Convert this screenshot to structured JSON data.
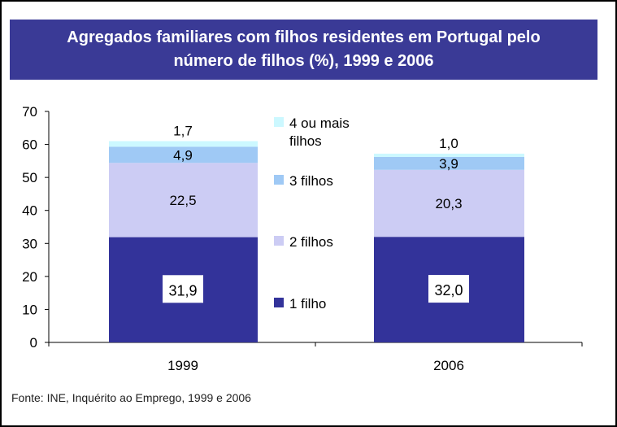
{
  "title": {
    "line1": "Agregados familiares com filhos residentes em Portugal pelo",
    "line2": "número de filhos (%), 1999 e 2006"
  },
  "source": "Fonte: INE, Inquérito ao Emprego, 1999 e 2006",
  "colors": {
    "title_bg": "#3a3a96",
    "series": [
      "#33339a",
      "#ccccf4",
      "#9fc9f5",
      "#ccf8ff"
    ]
  },
  "chart_data": {
    "type": "bar",
    "stacked": true,
    "categories": [
      "1999",
      "2006"
    ],
    "series": [
      {
        "name": "1 filho",
        "values": [
          31.9,
          32.0
        ],
        "labels": [
          "31,9",
          "32,0"
        ]
      },
      {
        "name": "2 filhos",
        "values": [
          22.5,
          20.3
        ],
        "labels": [
          "22,5",
          "20,3"
        ]
      },
      {
        "name": "3 filhos",
        "values": [
          4.9,
          3.9
        ],
        "labels": [
          "4,9",
          "3,9"
        ]
      },
      {
        "name": "4 ou mais filhos",
        "values": [
          1.7,
          1.0
        ],
        "labels": [
          "1,7",
          "1,0"
        ]
      }
    ],
    "legend_lines": [
      [
        "4 ou mais",
        "filhos"
      ],
      [
        "3 filhos"
      ],
      [
        "2 filhos"
      ],
      [
        "1 filho"
      ]
    ],
    "ylim": [
      0,
      70
    ],
    "yticks": [
      0,
      10,
      20,
      30,
      40,
      50,
      60,
      70
    ],
    "legend_position": "right, between bars",
    "grid": false
  }
}
